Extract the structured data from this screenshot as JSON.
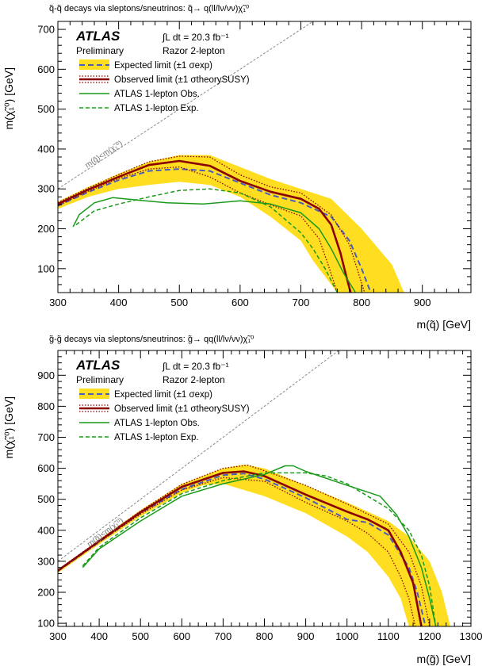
{
  "colors": {
    "band": "#ffde21",
    "expected": "#4a5dbc",
    "observed": "#8b0000",
    "onelepton": "#1a9a1a",
    "diagonal": "#888888"
  },
  "chart_data": [
    {
      "type": "line",
      "title": "q̃-q̃ decays via sleptons/sneutrinos: q̃→ q(ll/lν/νν)χ̃₁⁰",
      "xlabel": "m(q̃) [GeV]",
      "ylabel": "m(χ̃₁⁰) [GeV]",
      "xlim": [
        300,
        980
      ],
      "ylim": [
        40,
        720
      ],
      "xticks": [
        300,
        400,
        500,
        600,
        700,
        800,
        900
      ],
      "yticks": [
        100,
        200,
        300,
        400,
        500,
        600,
        700
      ],
      "grid": false,
      "experiment": "ATLAS",
      "status": "Preliminary",
      "lumi": "∫L dt = 20.3 fb⁻¹",
      "analysis": "Razor 2-lepton",
      "diagonal_label": "m(q̃)<m(χ̃₁⁰)",
      "legend": {
        "position": "top-left",
        "entries": [
          {
            "key": "expected",
            "label": "Expected limit (±1 σexp)"
          },
          {
            "key": "observed",
            "label": "Observed limit (±1 σtheorySUSY)"
          },
          {
            "key": "obs1l",
            "label": "ATLAS 1-lepton Obs."
          },
          {
            "key": "exp1l",
            "label": "ATLAS 1-lepton Exp."
          }
        ]
      },
      "band_upper": {
        "x": [
          300,
          350,
          400,
          450,
          500,
          550,
          600,
          650,
          700,
          750,
          800,
          850,
          870
        ],
        "y": [
          268,
          305,
          338,
          368,
          385,
          385,
          355,
          325,
          300,
          275,
          200,
          110,
          40
        ]
      },
      "band_lower": {
        "x": [
          300,
          350,
          400,
          450,
          500,
          550,
          600,
          650,
          700,
          720,
          740,
          760
        ],
        "y": [
          250,
          280,
          300,
          310,
          318,
          310,
          280,
          230,
          170,
          120,
          80,
          40
        ]
      },
      "series": [
        {
          "key": "expected",
          "style": "dashed",
          "x": [
            300,
            350,
            400,
            450,
            500,
            550,
            600,
            650,
            700,
            750,
            780,
            800,
            815
          ],
          "y": [
            258,
            292,
            322,
            345,
            350,
            345,
            315,
            285,
            265,
            230,
            170,
            100,
            40
          ]
        },
        {
          "key": "observed",
          "style": "solid",
          "x": [
            300,
            350,
            400,
            450,
            500,
            550,
            600,
            650,
            700,
            730,
            750,
            765,
            775,
            782
          ],
          "y": [
            262,
            298,
            330,
            360,
            370,
            358,
            320,
            293,
            275,
            250,
            210,
            140,
            80,
            40
          ]
        },
        {
          "key": "obs_up",
          "style": "dotted",
          "x": [
            300,
            350,
            400,
            450,
            500,
            550,
            600,
            650,
            700,
            750,
            780,
            805
          ],
          "y": [
            266,
            302,
            336,
            368,
            382,
            380,
            335,
            305,
            290,
            235,
            160,
            40
          ]
        },
        {
          "key": "obs_down",
          "style": "dotted",
          "x": [
            300,
            350,
            400,
            450,
            500,
            550,
            600,
            650,
            700,
            730,
            745,
            760
          ],
          "y": [
            258,
            294,
            326,
            350,
            355,
            330,
            290,
            260,
            232,
            175,
            110,
            40
          ]
        },
        {
          "key": "obs1l",
          "style": "solid",
          "x": [
            325,
            335,
            360,
            390,
            430,
            480,
            540,
            600,
            650,
            700,
            730,
            750,
            770,
            790
          ],
          "y": [
            205,
            235,
            265,
            278,
            272,
            265,
            262,
            270,
            262,
            240,
            200,
            150,
            90,
            40
          ]
        },
        {
          "key": "exp1l",
          "style": "dashed",
          "x": [
            330,
            360,
            400,
            450,
            500,
            550,
            600,
            650,
            700,
            720,
            740,
            760
          ],
          "y": [
            210,
            245,
            262,
            280,
            296,
            300,
            290,
            255,
            190,
            150,
            100,
            40
          ]
        }
      ]
    },
    {
      "type": "line",
      "title": "g̃-g̃ decays via sleptons/sneutrinos: g̃→ qq(ll/lν/νν)χ̃₁⁰",
      "xlabel": "m(g̃) [GeV]",
      "ylabel": "m(χ̃₁⁰) [GeV]",
      "xlim": [
        300,
        1300
      ],
      "ylim": [
        90,
        980
      ],
      "xticks": [
        300,
        400,
        500,
        600,
        700,
        800,
        900,
        1000,
        1100,
        1200,
        1300
      ],
      "yticks": [
        100,
        200,
        300,
        400,
        500,
        600,
        700,
        800,
        900
      ],
      "grid": false,
      "experiment": "ATLAS",
      "status": "Preliminary",
      "lumi": "∫L dt = 20.3 fb⁻¹",
      "analysis": "Razor 2-lepton",
      "diagonal_label": "m(g̃)<m(χ̃₁⁰)",
      "legend": {
        "position": "top-left",
        "entries": [
          {
            "key": "expected",
            "label": "Expected limit (±1 σexp)"
          },
          {
            "key": "observed",
            "label": "Observed limit (±1 σtheorySUSY)"
          },
          {
            "key": "obs1l",
            "label": "ATLAS 1-lepton Obs."
          },
          {
            "key": "exp1l",
            "label": "ATLAS 1-lepton Exp."
          }
        ]
      },
      "band_upper": {
        "x": [
          300,
          400,
          500,
          600,
          700,
          750,
          800,
          900,
          1000,
          1100,
          1150,
          1200,
          1230,
          1250
        ],
        "y": [
          270,
          370,
          465,
          550,
          600,
          612,
          600,
          545,
          490,
          430,
          380,
          300,
          200,
          90
        ]
      },
      "band_lower": {
        "x": [
          300,
          400,
          500,
          600,
          650,
          700,
          800,
          900,
          1000,
          1050,
          1100,
          1130,
          1150
        ],
        "y": [
          262,
          355,
          445,
          520,
          545,
          550,
          510,
          455,
          380,
          330,
          250,
          180,
          90
        ]
      },
      "series": [
        {
          "key": "expected",
          "style": "dashed",
          "x": [
            300,
            400,
            500,
            600,
            700,
            750,
            800,
            900,
            1000,
            1050,
            1100,
            1150,
            1170,
            1190
          ],
          "y": [
            268,
            362,
            455,
            532,
            578,
            583,
            565,
            505,
            435,
            425,
            385,
            280,
            200,
            90
          ]
        },
        {
          "key": "observed",
          "style": "solid",
          "x": [
            300,
            400,
            500,
            600,
            700,
            750,
            800,
            900,
            1000,
            1050,
            1100,
            1130,
            1160,
            1180
          ],
          "y": [
            270,
            365,
            458,
            540,
            585,
            590,
            575,
            515,
            460,
            435,
            400,
            330,
            230,
            90
          ]
        },
        {
          "key": "obs_up",
          "style": "dotted",
          "x": [
            300,
            400,
            500,
            600,
            700,
            760,
            800,
            900,
            1000,
            1100,
            1150,
            1180,
            1200
          ],
          "y": [
            272,
            368,
            462,
            548,
            600,
            610,
            592,
            545,
            485,
            420,
            330,
            220,
            90
          ]
        },
        {
          "key": "obs_down",
          "style": "dotted",
          "x": [
            300,
            400,
            500,
            600,
            700,
            800,
            900,
            1000,
            1050,
            1100,
            1130,
            1150,
            1165
          ],
          "y": [
            268,
            362,
            452,
            530,
            570,
            558,
            490,
            430,
            390,
            330,
            250,
            180,
            90
          ]
        },
        {
          "key": "obs1l",
          "style": "solid",
          "x": [
            360,
            400,
            500,
            600,
            700,
            800,
            850,
            870,
            900,
            1000,
            1080,
            1120,
            1150,
            1180,
            1200,
            1215
          ],
          "y": [
            280,
            340,
            430,
            510,
            550,
            580,
            608,
            608,
            590,
            545,
            510,
            450,
            380,
            280,
            180,
            90
          ]
        },
        {
          "key": "exp1l",
          "style": "dashed",
          "x": [
            360,
            400,
            500,
            600,
            700,
            800,
            900,
            950,
            1000,
            1050,
            1100,
            1150,
            1180,
            1200,
            1215
          ],
          "y": [
            285,
            345,
            440,
            518,
            560,
            585,
            585,
            575,
            550,
            510,
            470,
            400,
            320,
            220,
            90
          ]
        }
      ]
    }
  ]
}
